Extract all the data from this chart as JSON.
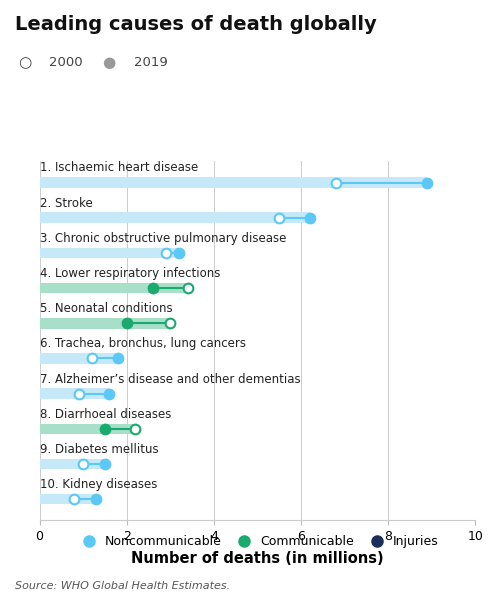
{
  "title": "Leading causes of death globally",
  "xlabel": "Number of deaths (in millions)",
  "source": "Source: WHO Global Health Estimates.",
  "categories": [
    "1. Ischaemic heart disease",
    "2. Stroke",
    "3. Chronic obstructive pulmonary disease",
    "4. Lower respiratory infections",
    "5. Neonatal conditions",
    "6. Trachea, bronchus, lung cancers",
    "7. Alzheimer’s disease and other dementias",
    "8. Diarrhoeal diseases",
    "9. Diabetes mellitus",
    "10. Kidney diseases"
  ],
  "values_2000": [
    6.8,
    5.5,
    2.9,
    3.4,
    3.0,
    1.2,
    0.9,
    2.2,
    1.0,
    0.8
  ],
  "values_2019": [
    8.9,
    6.2,
    3.2,
    2.6,
    2.0,
    1.8,
    1.6,
    1.5,
    1.5,
    1.3
  ],
  "category_types": [
    "noncommunicable",
    "noncommunicable",
    "noncommunicable",
    "communicable",
    "communicable",
    "noncommunicable",
    "noncommunicable",
    "communicable",
    "noncommunicable",
    "noncommunicable"
  ],
  "color_noncommunicable": "#5bc8f5",
  "color_communicable": "#1aaa6e",
  "color_injuries": "#1a2e5a",
  "color_band_noncomm": "#c5e9f8",
  "color_band_comm": "#a8dfc8",
  "xlim": [
    0,
    10
  ],
  "xticks": [
    0,
    2,
    4,
    6,
    8,
    10
  ],
  "background_color": "#ffffff",
  "title_fontsize": 14,
  "label_fontsize": 8.5,
  "tick_fontsize": 9,
  "legend_fontsize": 9,
  "source_fontsize": 8,
  "legend2019_color": "#999999"
}
